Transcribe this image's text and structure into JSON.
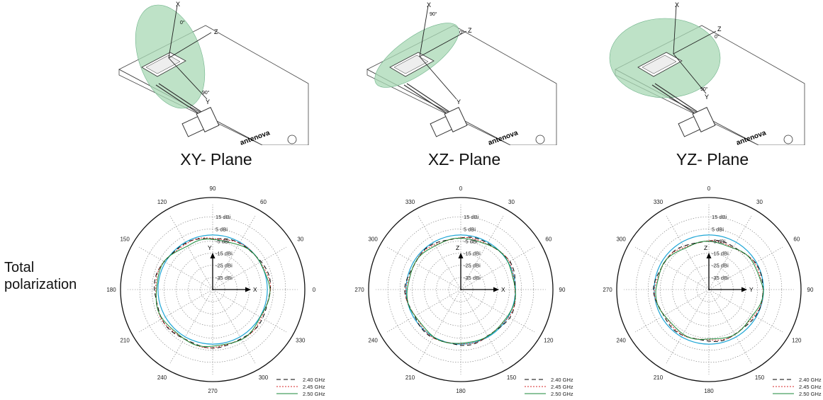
{
  "row_label": [
    "Total",
    "polarization"
  ],
  "colors": {
    "series_240": "#000000",
    "series_245": "#d62728",
    "series_250": "#1a8a3a",
    "reference_circle": "#1ea6d6",
    "plane_fill": "#a8d8b4"
  },
  "legend": [
    "2.40 GHz",
    "2.45 GHz",
    "2.50 GHz"
  ],
  "panels": [
    {
      "plane_title": "XY- Plane",
      "axis_labels": [
        "X",
        "Z",
        "Y"
      ],
      "angle_marks": [
        "0°",
        "90°"
      ],
      "plot_arrows": [
        "Y",
        "X"
      ],
      "angle_ticks": [
        "90",
        "60",
        "30",
        "0",
        "330",
        "300",
        "270",
        "240",
        "210",
        "180",
        "150",
        "120"
      ],
      "angle_offset_deg": 90,
      "db_ticks": [
        "15 dBi",
        "5 dBi",
        "-5 dBi",
        "-15 dBi",
        "-25 dBi",
        "-35 dBi"
      ]
    },
    {
      "plane_title": "XZ- Plane",
      "axis_labels": [
        "X",
        "Z",
        "Y"
      ],
      "angle_marks": [
        "90°",
        "0°"
      ],
      "plot_arrows": [
        "Z",
        "X"
      ],
      "angle_ticks": [
        "0",
        "30",
        "60",
        "90",
        "120",
        "150",
        "180",
        "210",
        "240",
        "270",
        "300",
        "330"
      ],
      "angle_offset_deg": 0,
      "db_ticks": [
        "15 dBi",
        "5 dBi",
        "-5 dBi",
        "-15 dBi",
        "-25 dBi",
        "-35 dBi"
      ]
    },
    {
      "plane_title": "YZ- Plane",
      "axis_labels": [
        "X",
        "Z",
        "Y"
      ],
      "angle_marks": [
        "0°",
        "90°"
      ],
      "plot_arrows": [
        "Z",
        "Y"
      ],
      "angle_ticks": [
        "0",
        "30",
        "60",
        "90",
        "120",
        "150",
        "180",
        "210",
        "240",
        "270",
        "300",
        "330"
      ],
      "angle_offset_deg": 0,
      "db_ticks": [
        "15 dBi",
        "5 dBi",
        "-5 dBi",
        "-15 dBi",
        "-25 dBi",
        "-35 dBi"
      ]
    }
  ],
  "chart_data": [
    {
      "type": "polar-line",
      "title": "XY- Plane",
      "r_ticks_dbi": [
        15,
        5,
        -5,
        -15,
        -25,
        -35
      ],
      "r_range_dbi": [
        -45,
        25
      ],
      "series": [
        {
          "name": "2.40 GHz",
          "style": "dashed",
          "angles_deg": [
            0,
            30,
            60,
            90,
            120,
            150,
            180,
            210,
            240,
            270,
            300,
            330
          ],
          "gain_dbi": [
            2.5,
            1.5,
            -1.5,
            -2.5,
            -1.5,
            1.5,
            3,
            3,
            2.5,
            2.5,
            2.5,
            2
          ]
        },
        {
          "name": "2.45 GHz",
          "style": "dotted",
          "angles_deg": [
            0,
            30,
            60,
            90,
            120,
            150,
            180,
            210,
            240,
            270,
            300,
            330
          ],
          "gain_dbi": [
            2,
            1,
            -1.5,
            -2.5,
            -1.5,
            1,
            2.5,
            3,
            2.5,
            2.5,
            2.5,
            1.5
          ]
        },
        {
          "name": "2.50 GHz",
          "style": "solid",
          "angles_deg": [
            0,
            30,
            60,
            90,
            120,
            150,
            180,
            210,
            240,
            270,
            300,
            330
          ],
          "gain_dbi": [
            1.5,
            0.5,
            -2.5,
            -4,
            -3,
            0.5,
            2,
            2.5,
            2,
            2,
            2,
            1
          ]
        }
      ]
    },
    {
      "type": "polar-line",
      "title": "XZ- Plane",
      "r_ticks_dbi": [
        15,
        5,
        -5,
        -15,
        -25,
        -35
      ],
      "r_range_dbi": [
        -45,
        25
      ],
      "series": [
        {
          "name": "2.40 GHz",
          "style": "dashed",
          "angles_deg": [
            0,
            30,
            60,
            90,
            120,
            150,
            180,
            210,
            240,
            270,
            300,
            330
          ],
          "gain_dbi": [
            -2.5,
            -0.5,
            1,
            0.5,
            1,
            -0.5,
            1,
            0.5,
            -0.5,
            0.5,
            -1,
            -1.5
          ]
        },
        {
          "name": "2.45 GHz",
          "style": "dotted",
          "angles_deg": [
            0,
            30,
            60,
            90,
            120,
            150,
            180,
            210,
            240,
            270,
            300,
            330
          ],
          "gain_dbi": [
            -3,
            -1,
            0.5,
            0,
            0.5,
            -1,
            0.5,
            0,
            -1,
            0,
            -1.5,
            -2
          ]
        },
        {
          "name": "2.50 GHz",
          "style": "solid",
          "angles_deg": [
            0,
            30,
            60,
            90,
            120,
            150,
            180,
            210,
            240,
            270,
            300,
            330
          ],
          "gain_dbi": [
            -3.5,
            -1.5,
            0,
            -0.5,
            0,
            -1.5,
            0,
            -0.5,
            -1.5,
            -0.5,
            -2,
            -2.5
          ]
        }
      ]
    },
    {
      "type": "polar-line",
      "title": "YZ- Plane",
      "r_ticks_dbi": [
        15,
        5,
        -5,
        -15,
        -25,
        -35
      ],
      "r_range_dbi": [
        -45,
        25
      ],
      "series": [
        {
          "name": "2.40 GHz",
          "style": "dashed",
          "angles_deg": [
            0,
            30,
            60,
            90,
            120,
            150,
            180,
            210,
            240,
            270,
            300,
            330
          ],
          "gain_dbi": [
            -5,
            -4,
            -1.5,
            0.5,
            -1.5,
            -2,
            -2.5,
            -2,
            -1.5,
            0,
            -1.5,
            -4
          ]
        },
        {
          "name": "2.45 GHz",
          "style": "dotted",
          "angles_deg": [
            0,
            30,
            60,
            90,
            120,
            150,
            180,
            210,
            240,
            270,
            300,
            330
          ],
          "gain_dbi": [
            -5.5,
            -4.5,
            -2,
            0,
            -2,
            -2.5,
            -3,
            -2.5,
            -2,
            -0.5,
            -2,
            -4.5
          ]
        },
        {
          "name": "2.50 GHz",
          "style": "solid",
          "angles_deg": [
            0,
            30,
            60,
            90,
            120,
            150,
            180,
            210,
            240,
            270,
            300,
            330
          ],
          "gain_dbi": [
            -6,
            -5,
            -2.5,
            -0.5,
            -2.5,
            -3,
            -3.5,
            -3,
            -2.5,
            -1,
            -2.5,
            -5
          ]
        }
      ]
    }
  ]
}
